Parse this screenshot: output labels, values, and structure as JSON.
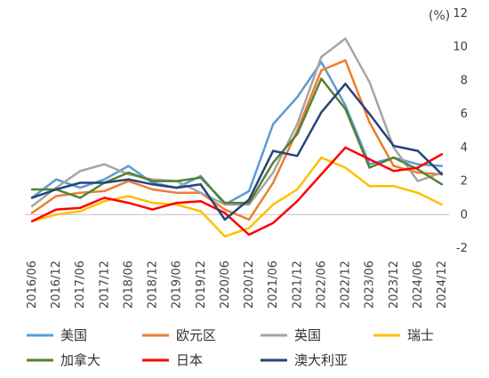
{
  "chart_data": {
    "type": "line",
    "title": "",
    "unit_label": "(%)",
    "xlabel": "",
    "ylabel": "",
    "ylim": [
      -2,
      12
    ],
    "y_ticks": [
      -2,
      0,
      2,
      4,
      6,
      8,
      10,
      12
    ],
    "y_axis_position": "right",
    "grid": false,
    "legend_position": "bottom",
    "x_tick_labels": [
      "2016/06",
      "2016/12",
      "2017/06",
      "2017/12",
      "2018/06",
      "2018/12",
      "2019/06",
      "2019/12",
      "2020/06",
      "2020/12",
      "2021/06",
      "2021/12",
      "2022/06",
      "2022/12",
      "2023/06",
      "2023/12",
      "2024/06",
      "2024/12"
    ],
    "series": [
      {
        "name": "美国",
        "color": "#5B9BD5",
        "points": [
          [
            "2016/06",
            1.0
          ],
          [
            "2016/12",
            2.1
          ],
          [
            "2017/06",
            1.6
          ],
          [
            "2017/12",
            2.1
          ],
          [
            "2018/06",
            2.9
          ],
          [
            "2018/12",
            1.9
          ],
          [
            "2019/06",
            1.6
          ],
          [
            "2019/12",
            2.3
          ],
          [
            "2020/06",
            0.6
          ],
          [
            "2020/12",
            1.4
          ],
          [
            "2021/06",
            5.4
          ],
          [
            "2021/12",
            7.0
          ],
          [
            "2022/06",
            9.1
          ],
          [
            "2022/12",
            6.5
          ],
          [
            "2023/06",
            3.0
          ],
          [
            "2023/12",
            3.4
          ],
          [
            "2024/06",
            3.0
          ],
          [
            "2024/12",
            2.9
          ]
        ]
      },
      {
        "name": "欧元区",
        "color": "#ED7D31",
        "points": [
          [
            "2016/06",
            0.1
          ],
          [
            "2016/12",
            1.1
          ],
          [
            "2017/06",
            1.3
          ],
          [
            "2017/12",
            1.4
          ],
          [
            "2018/06",
            2.0
          ],
          [
            "2018/12",
            1.5
          ],
          [
            "2019/06",
            1.3
          ],
          [
            "2019/12",
            1.3
          ],
          [
            "2020/06",
            0.3
          ],
          [
            "2020/12",
            -0.3
          ],
          [
            "2021/06",
            1.9
          ],
          [
            "2021/12",
            5.0
          ],
          [
            "2022/06",
            8.6
          ],
          [
            "2022/12",
            9.2
          ],
          [
            "2023/06",
            5.5
          ],
          [
            "2023/12",
            2.9
          ],
          [
            "2024/06",
            2.5
          ],
          [
            "2024/12",
            2.4
          ]
        ]
      },
      {
        "name": "英国",
        "color": "#A5A5A5",
        "points": [
          [
            "2016/06",
            0.5
          ],
          [
            "2016/12",
            1.6
          ],
          [
            "2017/06",
            2.6
          ],
          [
            "2017/12",
            3.0
          ],
          [
            "2018/06",
            2.4
          ],
          [
            "2018/12",
            2.1
          ],
          [
            "2019/06",
            2.0
          ],
          [
            "2019/12",
            1.3
          ],
          [
            "2020/06",
            0.6
          ],
          [
            "2020/12",
            0.6
          ],
          [
            "2021/06",
            2.5
          ],
          [
            "2021/12",
            5.4
          ],
          [
            "2022/06",
            9.4
          ],
          [
            "2022/12",
            10.5
          ],
          [
            "2023/06",
            7.9
          ],
          [
            "2023/12",
            4.0
          ],
          [
            "2024/06",
            2.0
          ],
          [
            "2024/12",
            2.5
          ]
        ]
      },
      {
        "name": "瑞士",
        "color": "#FFC000",
        "points": [
          [
            "2016/06",
            -0.4
          ],
          [
            "2016/12",
            0.0
          ],
          [
            "2017/06",
            0.2
          ],
          [
            "2017/12",
            0.8
          ],
          [
            "2018/06",
            1.1
          ],
          [
            "2018/12",
            0.7
          ],
          [
            "2019/06",
            0.6
          ],
          [
            "2019/12",
            0.2
          ],
          [
            "2020/06",
            -1.3
          ],
          [
            "2020/12",
            -0.8
          ],
          [
            "2021/06",
            0.6
          ],
          [
            "2021/12",
            1.5
          ],
          [
            "2022/06",
            3.4
          ],
          [
            "2022/12",
            2.8
          ],
          [
            "2023/06",
            1.7
          ],
          [
            "2023/12",
            1.7
          ],
          [
            "2024/06",
            1.3
          ],
          [
            "2024/12",
            0.6
          ]
        ]
      },
      {
        "name": "加拿大",
        "color": "#548235",
        "points": [
          [
            "2016/06",
            1.5
          ],
          [
            "2016/12",
            1.5
          ],
          [
            "2017/06",
            1.0
          ],
          [
            "2017/12",
            1.9
          ],
          [
            "2018/06",
            2.5
          ],
          [
            "2018/12",
            2.0
          ],
          [
            "2019/06",
            2.0
          ],
          [
            "2019/12",
            2.2
          ],
          [
            "2020/06",
            0.7
          ],
          [
            "2020/12",
            0.7
          ],
          [
            "2021/06",
            3.1
          ],
          [
            "2021/12",
            4.8
          ],
          [
            "2022/06",
            8.1
          ],
          [
            "2022/12",
            6.3
          ],
          [
            "2023/06",
            2.8
          ],
          [
            "2023/12",
            3.4
          ],
          [
            "2024/06",
            2.7
          ],
          [
            "2024/12",
            1.8
          ]
        ]
      },
      {
        "name": "日本",
        "color": "#FF0000",
        "points": [
          [
            "2016/06",
            -0.4
          ],
          [
            "2016/12",
            0.3
          ],
          [
            "2017/06",
            0.4
          ],
          [
            "2017/12",
            1.0
          ],
          [
            "2018/06",
            0.7
          ],
          [
            "2018/12",
            0.3
          ],
          [
            "2019/06",
            0.7
          ],
          [
            "2019/12",
            0.8
          ],
          [
            "2020/06",
            0.1
          ],
          [
            "2020/12",
            -1.2
          ],
          [
            "2021/06",
            -0.5
          ],
          [
            "2021/12",
            0.8
          ],
          [
            "2022/06",
            2.4
          ],
          [
            "2022/12",
            4.0
          ],
          [
            "2023/06",
            3.3
          ],
          [
            "2023/12",
            2.6
          ],
          [
            "2024/06",
            2.8
          ],
          [
            "2024/12",
            3.6
          ]
        ]
      },
      {
        "name": "澳大利亚",
        "color": "#264478",
        "points": [
          [
            "2016/06",
            1.0
          ],
          [
            "2016/12",
            1.5
          ],
          [
            "2017/06",
            1.9
          ],
          [
            "2017/12",
            1.9
          ],
          [
            "2018/06",
            2.1
          ],
          [
            "2018/12",
            1.8
          ],
          [
            "2019/06",
            1.6
          ],
          [
            "2019/12",
            1.8
          ],
          [
            "2020/06",
            -0.3
          ],
          [
            "2020/12",
            0.9
          ],
          [
            "2021/06",
            3.8
          ],
          [
            "2021/12",
            3.5
          ],
          [
            "2022/06",
            6.1
          ],
          [
            "2022/12",
            7.8
          ],
          [
            "2023/06",
            6.0
          ],
          [
            "2023/12",
            4.1
          ],
          [
            "2024/06",
            3.8
          ],
          [
            "2024/12",
            2.4
          ]
        ]
      }
    ]
  }
}
